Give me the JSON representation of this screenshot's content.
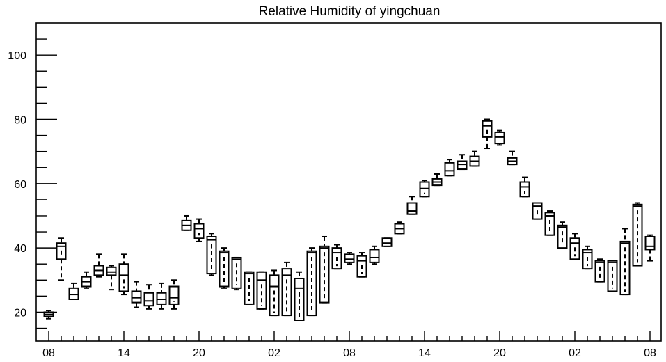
{
  "chart_data": {
    "type": "boxplot",
    "title": "Relative Humidity of yingchuan",
    "xlabel": "",
    "ylabel": "",
    "ylim": [
      11,
      110
    ],
    "yticks": [
      20,
      40,
      60,
      80,
      100
    ],
    "x_hours_start": "08",
    "x_step_hours": 1,
    "x_tick_labels": [
      {
        "index": 0,
        "label": "08"
      },
      {
        "index": 6,
        "label": "14"
      },
      {
        "index": 12,
        "label": "20"
      },
      {
        "index": 18,
        "label": "02"
      },
      {
        "index": 24,
        "label": "08"
      },
      {
        "index": 30,
        "label": "14"
      },
      {
        "index": 36,
        "label": "20"
      },
      {
        "index": 42,
        "label": "02"
      },
      {
        "index": 48,
        "label": "08"
      }
    ],
    "grid": false,
    "boxes": [
      {
        "index": 0,
        "q1": 18.7,
        "median": 19.3,
        "q3": 20.0,
        "min": 18.0,
        "max": 20.5
      },
      {
        "index": 1,
        "q1": 36.5,
        "median": 40.5,
        "q3": 41.5,
        "min": 30.0,
        "max": 43.0
      },
      {
        "index": 2,
        "q1": 24.0,
        "median": 25.5,
        "q3": 27.5,
        "min": 24.0,
        "max": 29.0
      },
      {
        "index": 3,
        "q1": 28.0,
        "median": 29.5,
        "q3": 31.0,
        "min": 27.5,
        "max": 32.5
      },
      {
        "index": 4,
        "q1": 31.5,
        "median": 33.0,
        "q3": 34.5,
        "min": 31.0,
        "max": 38.0
      },
      {
        "index": 5,
        "q1": 31.5,
        "median": 32.5,
        "q3": 34.0,
        "min": 27.0,
        "max": 34.5
      },
      {
        "index": 6,
        "q1": 26.5,
        "median": 31.5,
        "q3": 35.0,
        "min": 25.5,
        "max": 38.0
      },
      {
        "index": 7,
        "q1": 23.0,
        "median": 24.5,
        "q3": 26.5,
        "min": 21.5,
        "max": 29.5
      },
      {
        "index": 8,
        "q1": 22.0,
        "median": 23.5,
        "q3": 26.0,
        "min": 21.0,
        "max": 28.5
      },
      {
        "index": 9,
        "q1": 22.5,
        "median": 24.0,
        "q3": 26.0,
        "min": 21.0,
        "max": 29.0
      },
      {
        "index": 10,
        "q1": 22.5,
        "median": 24.5,
        "q3": 28.0,
        "min": 21.0,
        "max": 30.0
      },
      {
        "index": 11,
        "q1": 45.5,
        "median": 47.0,
        "q3": 48.5,
        "min": 45.5,
        "max": 50.0
      },
      {
        "index": 12,
        "q1": 43.0,
        "median": 46.0,
        "q3": 47.5,
        "min": 42.0,
        "max": 49.0
      },
      {
        "index": 13,
        "q1": 32.0,
        "median": 42.5,
        "q3": 43.5,
        "min": 31.5,
        "max": 44.5
      },
      {
        "index": 14,
        "q1": 28.0,
        "median": 38.5,
        "q3": 39.0,
        "min": 27.5,
        "max": 40.0
      },
      {
        "index": 15,
        "q1": 27.5,
        "median": 36.5,
        "q3": 37.0,
        "min": 27.0,
        "max": 37.0
      },
      {
        "index": 16,
        "q1": 22.5,
        "median": 32.0,
        "q3": 32.5,
        "min": 22.5,
        "max": 32.5
      },
      {
        "index": 17,
        "q1": 21.0,
        "median": 30.0,
        "q3": 32.5,
        "min": 21.0,
        "max": 32.5
      },
      {
        "index": 18,
        "q1": 19.0,
        "median": 28.0,
        "q3": 31.5,
        "min": 19.0,
        "max": 33.0
      },
      {
        "index": 19,
        "q1": 19.0,
        "median": 31.5,
        "q3": 33.5,
        "min": 19.0,
        "max": 35.5
      },
      {
        "index": 20,
        "q1": 17.5,
        "median": 27.5,
        "q3": 30.5,
        "min": 17.5,
        "max": 32.5
      },
      {
        "index": 21,
        "q1": 19.0,
        "median": 38.5,
        "q3": 39.0,
        "min": 19.0,
        "max": 40.0
      },
      {
        "index": 22,
        "q1": 23.0,
        "median": 40.0,
        "q3": 40.5,
        "min": 23.0,
        "max": 43.5
      },
      {
        "index": 23,
        "q1": 33.5,
        "median": 38.5,
        "q3": 40.0,
        "min": 33.5,
        "max": 41.0
      },
      {
        "index": 24,
        "q1": 35.5,
        "median": 36.5,
        "q3": 38.0,
        "min": 35.0,
        "max": 38.5
      },
      {
        "index": 25,
        "q1": 31.0,
        "median": 36.0,
        "q3": 37.5,
        "min": 31.0,
        "max": 38.5
      },
      {
        "index": 26,
        "q1": 35.5,
        "median": 37.0,
        "q3": 39.5,
        "min": 35.0,
        "max": 40.5
      },
      {
        "index": 27,
        "q1": 40.5,
        "median": 41.5,
        "q3": 43.0,
        "min": 40.5,
        "max": 43.0
      },
      {
        "index": 28,
        "q1": 44.5,
        "median": 46.0,
        "q3": 47.5,
        "min": 44.5,
        "max": 48.0
      },
      {
        "index": 29,
        "q1": 50.5,
        "median": 51.5,
        "q3": 54.0,
        "min": 50.5,
        "max": 56.0
      },
      {
        "index": 30,
        "q1": 56.0,
        "median": 58.5,
        "q3": 60.5,
        "min": 56.0,
        "max": 61.0
      },
      {
        "index": 31,
        "q1": 59.5,
        "median": 60.5,
        "q3": 61.5,
        "min": 59.5,
        "max": 63.0
      },
      {
        "index": 32,
        "q1": 62.5,
        "median": 64.0,
        "q3": 66.5,
        "min": 62.5,
        "max": 67.5
      },
      {
        "index": 33,
        "q1": 64.5,
        "median": 66.0,
        "q3": 67.0,
        "min": 64.5,
        "max": 69.0
      },
      {
        "index": 34,
        "q1": 65.5,
        "median": 67.0,
        "q3": 68.5,
        "min": 65.5,
        "max": 70.0
      },
      {
        "index": 35,
        "q1": 74.5,
        "median": 78.0,
        "q3": 79.5,
        "min": 71.0,
        "max": 80.0
      },
      {
        "index": 36,
        "q1": 72.5,
        "median": 74.5,
        "q3": 76.0,
        "min": 72.0,
        "max": 76.5
      },
      {
        "index": 37,
        "q1": 66.0,
        "median": 67.0,
        "q3": 68.0,
        "min": 66.0,
        "max": 70.0
      },
      {
        "index": 38,
        "q1": 56.0,
        "median": 59.0,
        "q3": 60.5,
        "min": 56.0,
        "max": 62.0
      },
      {
        "index": 39,
        "q1": 49.0,
        "median": 53.0,
        "q3": 54.0,
        "min": 49.0,
        "max": 54.0
      },
      {
        "index": 40,
        "q1": 44.0,
        "median": 50.0,
        "q3": 51.0,
        "min": 44.0,
        "max": 51.5
      },
      {
        "index": 41,
        "q1": 40.0,
        "median": 46.5,
        "q3": 47.0,
        "min": 40.0,
        "max": 48.0
      },
      {
        "index": 42,
        "q1": 36.5,
        "median": 41.5,
        "q3": 43.0,
        "min": 36.5,
        "max": 44.5
      },
      {
        "index": 43,
        "q1": 33.5,
        "median": 38.5,
        "q3": 39.5,
        "min": 33.5,
        "max": 40.5
      },
      {
        "index": 44,
        "q1": 29.5,
        "median": 35.5,
        "q3": 36.0,
        "min": 29.5,
        "max": 36.5
      },
      {
        "index": 45,
        "q1": 26.5,
        "median": 35.5,
        "q3": 36.0,
        "min": 26.5,
        "max": 36.0
      },
      {
        "index": 46,
        "q1": 25.5,
        "median": 41.5,
        "q3": 42.0,
        "min": 25.5,
        "max": 46.0
      },
      {
        "index": 47,
        "q1": 34.5,
        "median": 53.0,
        "q3": 53.5,
        "min": 34.5,
        "max": 54.0
      },
      {
        "index": 48,
        "q1": 39.5,
        "median": 40.5,
        "q3": 43.5,
        "min": 36.0,
        "max": 44.0
      }
    ]
  }
}
